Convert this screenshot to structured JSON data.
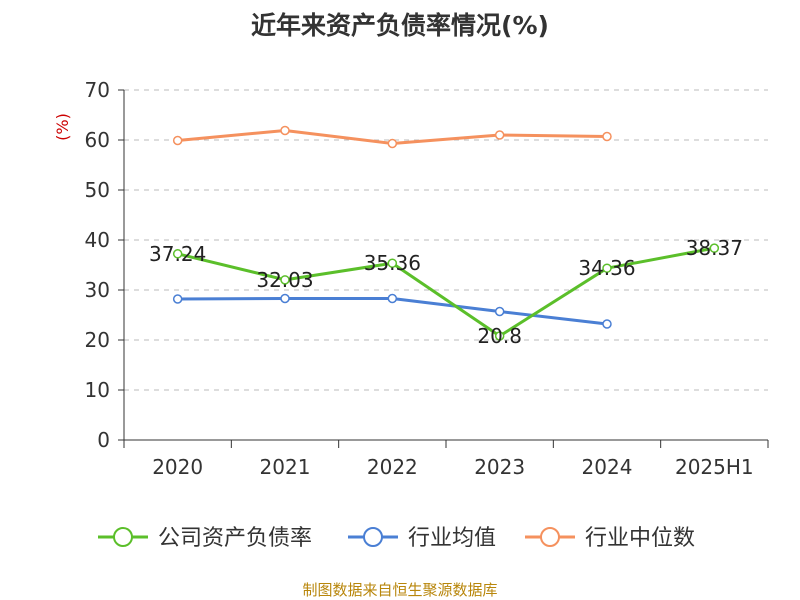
{
  "title": "近年来资产负债率情况(%)",
  "source": "制图数据来自恒生聚源数据库",
  "chart_data": {
    "type": "line",
    "title": "近年来资产负债率情况(%)",
    "ylabel": "(%)",
    "xlabel": "",
    "categories": [
      "2020",
      "2021",
      "2022",
      "2023",
      "2024",
      "2025H1"
    ],
    "ylim": [
      0,
      70
    ],
    "yticks": [
      0,
      10,
      20,
      30,
      40,
      50,
      60,
      70
    ],
    "grid": "horizontal dashed",
    "legend_position": "bottom",
    "series": [
      {
        "name": "公司资产负债率",
        "color": "#5bbf2a",
        "values": [
          37.24,
          32.03,
          35.36,
          20.8,
          34.36,
          38.37
        ],
        "labels": [
          "37.24",
          "32.03",
          "35.36",
          "20.8",
          "34.36",
          "38.37"
        ]
      },
      {
        "name": "行业均值",
        "color": "#4a7fd4",
        "values": [
          28.2,
          28.3,
          28.3,
          25.7,
          23.2,
          null
        ]
      },
      {
        "name": "行业中位数",
        "color": "#f5915e",
        "values": [
          59.9,
          61.9,
          59.3,
          61.0,
          60.7,
          null
        ]
      }
    ]
  }
}
